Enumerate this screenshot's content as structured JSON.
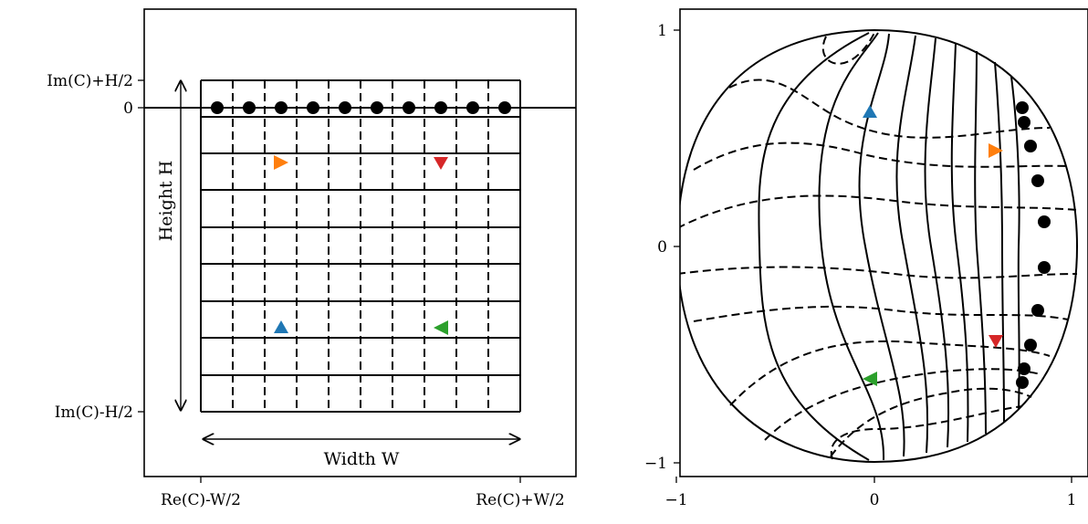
{
  "left_panel": {
    "x_tick_labels": [
      "Re(C)-W/2",
      "Re(C)+W/2"
    ],
    "y_tick_labels": [
      "Im(C)+H/2",
      "0",
      "Im(C)-H/2"
    ],
    "width_label": "Width W",
    "height_label": "Height H",
    "grid_vertical_lines": 11,
    "grid_horizontal_lines": 10,
    "dot_count": 10
  },
  "right_panel": {
    "x_tick_labels": [
      "−1",
      "0",
      "1"
    ],
    "y_tick_labels": [
      "1",
      "0",
      "−1"
    ],
    "x_range": [
      -1,
      1
    ],
    "y_range": [
      -1,
      1
    ]
  },
  "markers": [
    {
      "name": "blue-triangle-up",
      "color": "#1f77b4",
      "shape": "triangle-up"
    },
    {
      "name": "orange-triangle-right",
      "color": "#ff7f0e",
      "shape": "triangle-right"
    },
    {
      "name": "red-triangle-down",
      "color": "#d62728",
      "shape": "triangle-down"
    },
    {
      "name": "green-triangle-left",
      "color": "#2ca02c",
      "shape": "triangle-left"
    }
  ],
  "colors": {
    "lines": "#000000",
    "background": "#ffffff"
  }
}
